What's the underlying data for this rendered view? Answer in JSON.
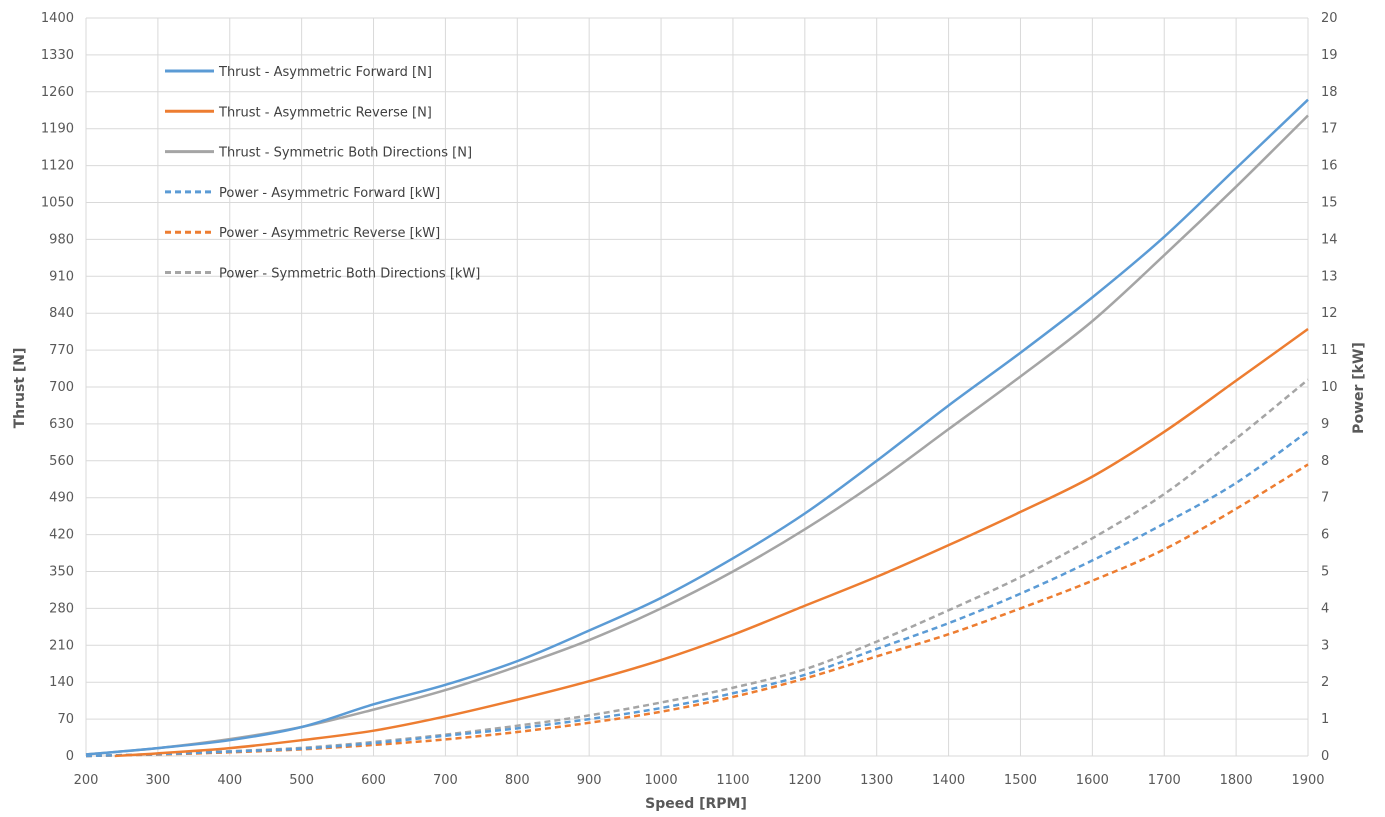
{
  "chart_data": {
    "type": "line",
    "title": "",
    "xlabel": "Speed [RPM]",
    "ylabel": "Thrust [N]",
    "y2label": "Power [kW]",
    "xlim": [
      200,
      1900
    ],
    "ylim": [
      0,
      1400
    ],
    "y2lim": [
      0,
      20
    ],
    "x_ticks": [
      "200",
      "300",
      "400",
      "500",
      "600",
      "700",
      "800",
      "900",
      "1000",
      "1100",
      "1200",
      "1300",
      "1400",
      "1500",
      "1600",
      "1700",
      "1800",
      "1900"
    ],
    "y_ticks": [
      "0",
      "70",
      "140",
      "210",
      "280",
      "350",
      "420",
      "490",
      "560",
      "630",
      "700",
      "770",
      "840",
      "910",
      "980",
      "1050",
      "1120",
      "1190",
      "1260",
      "1330",
      "1400"
    ],
    "y2_ticks": [
      "0",
      "1",
      "2",
      "3",
      "4",
      "5",
      "6",
      "7",
      "8",
      "9",
      "10",
      "11",
      "12",
      "13",
      "14",
      "15",
      "16",
      "17",
      "18",
      "19",
      "20"
    ],
    "grid": true,
    "legend_position": "top-left",
    "series": [
      {
        "name": "Thrust - Asymmetric Forward [N]",
        "axis": "left",
        "color": "#5b9bd5",
        "dash": "solid",
        "x": [
          200,
          300,
          400,
          500,
          600,
          700,
          800,
          900,
          1000,
          1100,
          1200,
          1300,
          1400,
          1500,
          1600,
          1700,
          1800,
          1900
        ],
        "y": [
          3,
          15,
          30,
          55,
          98,
          135,
          180,
          238,
          300,
          375,
          460,
          560,
          665,
          765,
          870,
          985,
          1115,
          1245
        ]
      },
      {
        "name": "Thrust - Asymmetric Reverse [N]",
        "axis": "left",
        "color": "#ed7d31",
        "dash": "solid",
        "x": [
          240,
          300,
          400,
          500,
          600,
          700,
          800,
          900,
          1000,
          1100,
          1200,
          1300,
          1400,
          1500,
          1600,
          1700,
          1800,
          1900
        ],
        "y": [
          0,
          5,
          15,
          30,
          48,
          75,
          107,
          142,
          182,
          230,
          285,
          340,
          400,
          463,
          530,
          615,
          712,
          810
        ]
      },
      {
        "name": "Thrust - Symmetric Both Directions [N]",
        "axis": "left",
        "color": "#a5a5a5",
        "dash": "solid",
        "x": [
          200,
          300,
          400,
          500,
          600,
          700,
          800,
          900,
          1000,
          1100,
          1200,
          1300,
          1400,
          1500,
          1600,
          1700,
          1800,
          1900
        ],
        "y": [
          3,
          15,
          32,
          55,
          88,
          125,
          170,
          220,
          280,
          350,
          430,
          520,
          620,
          720,
          825,
          950,
          1080,
          1215
        ]
      },
      {
        "name": "Power - Asymmetric Forward [kW]",
        "axis": "right",
        "color": "#5b9bd5",
        "dash": "dashed",
        "x": [
          200,
          300,
          400,
          500,
          600,
          700,
          800,
          900,
          1000,
          1100,
          1200,
          1300,
          1400,
          1500,
          1600,
          1700,
          1800,
          1900
        ],
        "y": [
          0.0,
          0.05,
          0.12,
          0.2,
          0.35,
          0.55,
          0.75,
          1.0,
          1.3,
          1.7,
          2.2,
          2.9,
          3.6,
          4.4,
          5.3,
          6.3,
          7.4,
          8.8
        ]
      },
      {
        "name": "Power - Asymmetric Reverse [kW]",
        "axis": "right",
        "color": "#ed7d31",
        "dash": "dashed",
        "x": [
          200,
          300,
          400,
          500,
          600,
          700,
          800,
          900,
          1000,
          1100,
          1200,
          1300,
          1400,
          1500,
          1600,
          1700,
          1800,
          1900
        ],
        "y": [
          0.0,
          0.04,
          0.1,
          0.18,
          0.3,
          0.45,
          0.65,
          0.9,
          1.2,
          1.6,
          2.1,
          2.7,
          3.3,
          4.0,
          4.75,
          5.6,
          6.7,
          7.9
        ]
      },
      {
        "name": "Power - Symmetric Both Directions [kW]",
        "axis": "right",
        "color": "#a5a5a5",
        "dash": "dashed",
        "x": [
          200,
          300,
          400,
          500,
          600,
          700,
          800,
          900,
          1000,
          1100,
          1200,
          1300,
          1400,
          1500,
          1600,
          1700,
          1800,
          1900
        ],
        "y": [
          0.0,
          0.05,
          0.13,
          0.22,
          0.38,
          0.58,
          0.82,
          1.1,
          1.45,
          1.85,
          2.35,
          3.1,
          3.95,
          4.85,
          5.9,
          7.1,
          8.6,
          10.2
        ]
      }
    ]
  }
}
